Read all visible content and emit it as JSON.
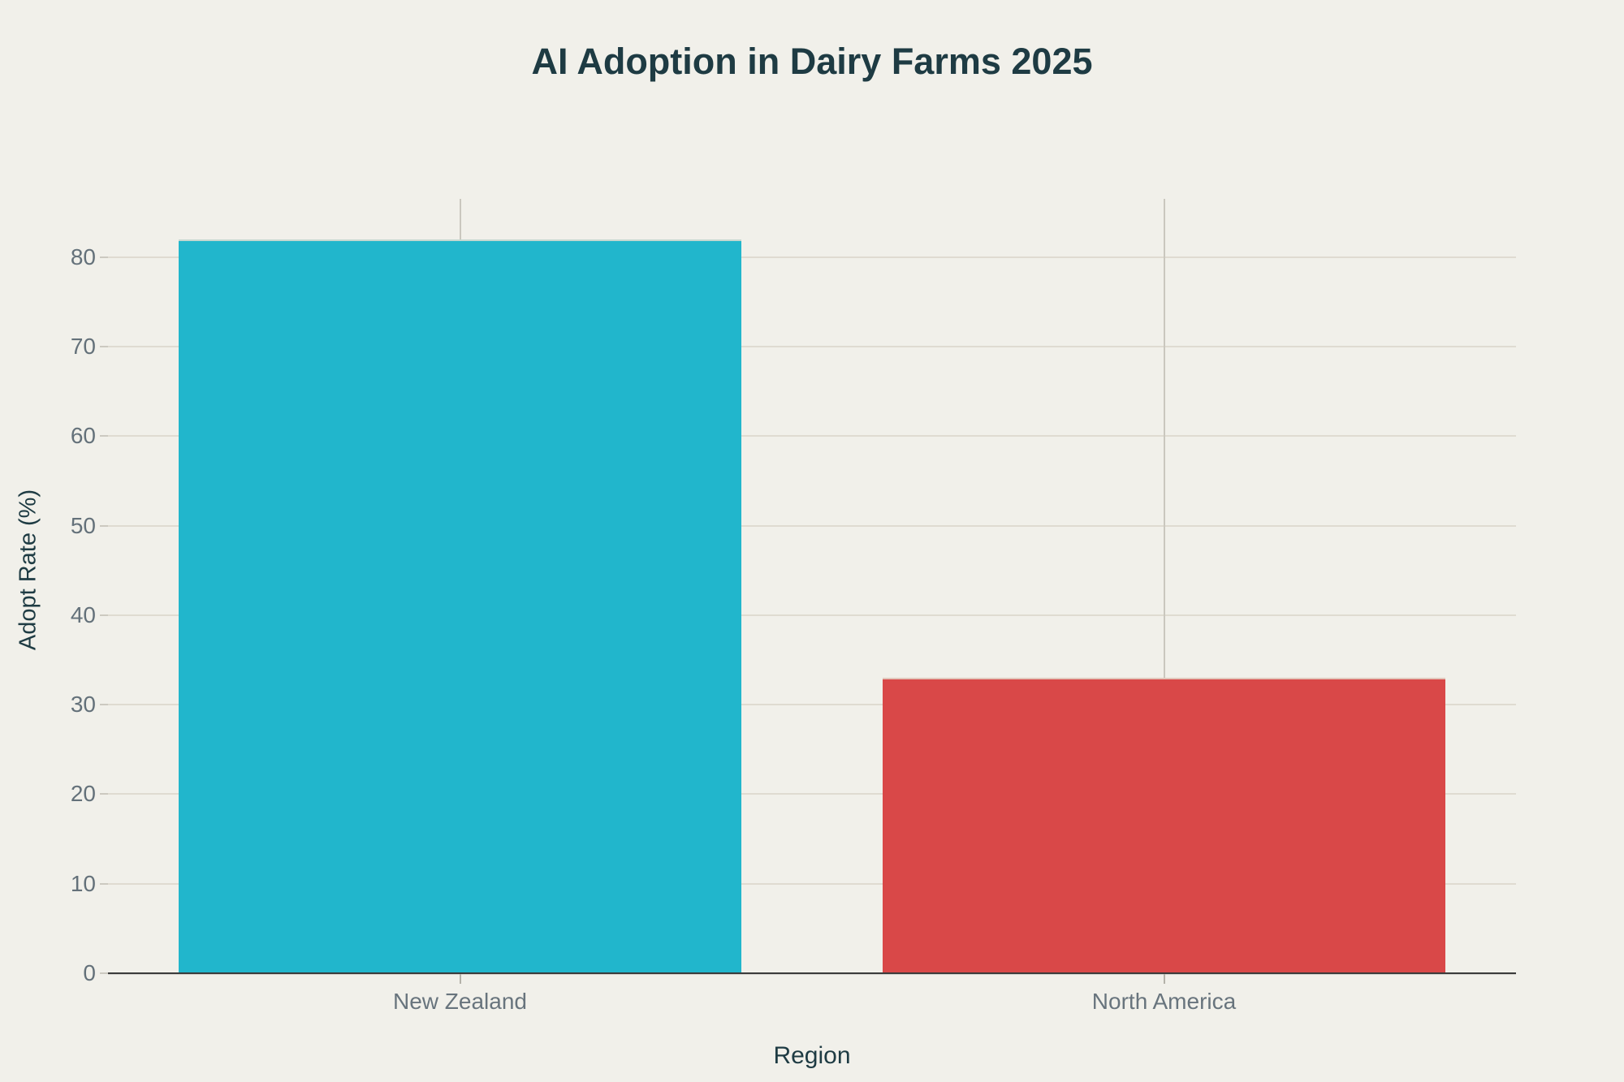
{
  "chart_data": {
    "type": "bar",
    "title": "AI Adoption in Dairy Farms 2025",
    "xlabel": "Region",
    "ylabel": "Adopt Rate (%)",
    "categories": [
      "New Zealand",
      "North America"
    ],
    "values": [
      82,
      33
    ],
    "bar_colors": [
      "#21b6cc",
      "#d94848"
    ],
    "yticks": [
      0,
      10,
      20,
      30,
      40,
      50,
      60,
      70,
      80
    ],
    "ylim": [
      0,
      86.5
    ],
    "grid": true,
    "legend": "none",
    "background": "#f1f0ea"
  },
  "colors": {
    "title_text": "#1e3b43",
    "axis_title_text": "#1e3b43",
    "ytick_text": "#64717a",
    "xtick_text": "#68747d",
    "h_gridline": "#dfdbd1",
    "v_gridline": "#cac7be",
    "axis_line": "#3b3b3b",
    "bar_new_zealand": "#21b6cc",
    "bar_north_america": "#d94848"
  }
}
